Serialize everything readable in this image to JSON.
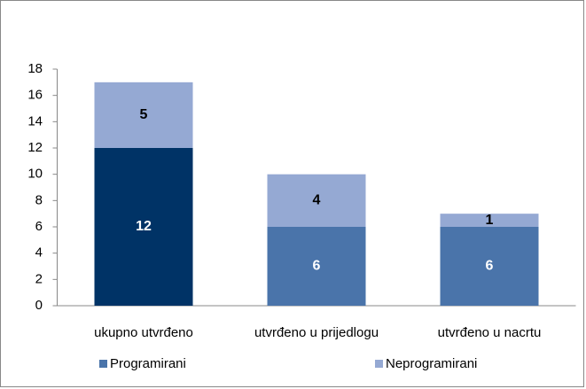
{
  "chart_data": {
    "type": "stacked_bar",
    "categories": [
      "ukupno utvrđeno",
      "utvrđeno u prijedlogu",
      "utvrđeno u nacrtu"
    ],
    "series": [
      {
        "name": "Programirani",
        "color": "#4a74aa",
        "point_colors": [
          "#003366",
          "#4a74aa",
          "#4a74aa"
        ],
        "label_color": "#ffffff",
        "values": [
          12,
          6,
          6
        ]
      },
      {
        "name": "Neprogramirani",
        "color": "#95a9d3",
        "label_color": "#000000",
        "values": [
          5,
          4,
          1
        ]
      }
    ],
    "ylim": [
      0,
      18
    ],
    "yticks": [
      0,
      2,
      4,
      6,
      8,
      10,
      12,
      14,
      16,
      18
    ],
    "grid": false,
    "legend": "bottom"
  }
}
